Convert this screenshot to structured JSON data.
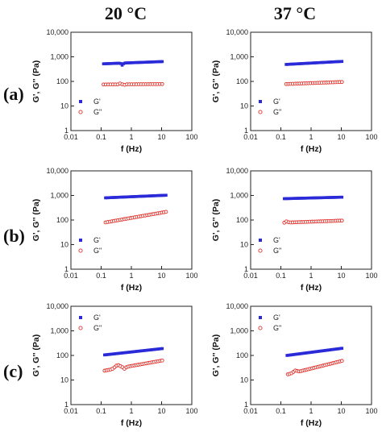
{
  "column_titles": [
    "20 °C",
    "37 °C"
  ],
  "row_labels": [
    "(a)",
    "(b)",
    "(c)"
  ],
  "colors": {
    "g_storage": "#2a2ad8",
    "g_loss": "#e0302a"
  },
  "chart_data": [
    {
      "panel": "a-20C",
      "type": "scatter",
      "xscale": "log",
      "yscale": "log",
      "xlabel": "f (Hz)",
      "ylabel": "G', G'' (Pa)",
      "xlim": [
        0.01,
        100
      ],
      "ylim": [
        1,
        10000
      ],
      "xticks": [
        "0.01",
        "0.1",
        "1",
        "10",
        "100"
      ],
      "yticks": [
        "1",
        "10",
        "100",
        "1,000",
        "10,000"
      ],
      "legend_position": "left",
      "series": [
        {
          "name": "G'",
          "marker": "filled-square",
          "fmin": 0.12,
          "fmax": 10.5,
          "npts": 42,
          "start": 520,
          "end": 640,
          "bumps": [
            [
              0.5,
              0.82,
              0.04
            ]
          ]
        },
        {
          "name": "G\"",
          "marker": "open-circle",
          "fmin": 0.12,
          "fmax": 10.5,
          "npts": 26,
          "start": 75,
          "end": 78,
          "bumps": [
            [
              0.45,
              1.12,
              0.05
            ],
            [
              0.55,
              0.9,
              0.04
            ]
          ]
        }
      ]
    },
    {
      "panel": "a-37C",
      "type": "scatter",
      "xscale": "log",
      "yscale": "log",
      "xlabel": "f (Hz)",
      "ylabel": "G', G'' (Pa)",
      "xlim": [
        0.01,
        100
      ],
      "ylim": [
        1,
        10000
      ],
      "xticks": [
        "0.01",
        "0.1",
        "1",
        "10",
        "100"
      ],
      "yticks": [
        "1",
        "10",
        "100",
        "1,000",
        "10,000"
      ],
      "legend_position": "left",
      "series": [
        {
          "name": "G'",
          "marker": "filled-square",
          "fmin": 0.15,
          "fmax": 10.5,
          "npts": 42,
          "start": 490,
          "end": 650,
          "bumps": []
        },
        {
          "name": "G\"",
          "marker": "open-circle",
          "fmin": 0.15,
          "fmax": 10.5,
          "npts": 26,
          "start": 78,
          "end": 95,
          "bumps": []
        }
      ]
    },
    {
      "panel": "b-20C",
      "type": "scatter",
      "xscale": "log",
      "yscale": "log",
      "xlabel": "f (Hz)",
      "ylabel": "G', G'' (Pa)",
      "xlim": [
        0.01,
        100
      ],
      "ylim": [
        1,
        10000
      ],
      "xticks": [
        "0.01",
        "0.1",
        "1",
        "10",
        "100"
      ],
      "yticks": [
        "1",
        "10",
        "100",
        "1,000",
        "10,000"
      ],
      "legend_position": "left",
      "series": [
        {
          "name": "G'",
          "marker": "filled-square",
          "fmin": 0.14,
          "fmax": 14,
          "npts": 46,
          "start": 800,
          "end": 1020,
          "bumps": []
        },
        {
          "name": "G\"",
          "marker": "open-circle",
          "fmin": 0.14,
          "fmax": 14,
          "npts": 30,
          "start": 80,
          "end": 215,
          "bumps": []
        }
      ]
    },
    {
      "panel": "b-37C",
      "type": "scatter",
      "xscale": "log",
      "yscale": "log",
      "xlabel": "f (Hz)",
      "ylabel": "G', G'' (Pa)",
      "xlim": [
        0.01,
        100
      ],
      "ylim": [
        1,
        10000
      ],
      "xticks": [
        "0.01",
        "0.1",
        "1",
        "10",
        "100"
      ],
      "yticks": [
        "1",
        "10",
        "100",
        "1,000",
        "10,000"
      ],
      "legend_position": "left",
      "series": [
        {
          "name": "G'",
          "marker": "filled-square",
          "fmin": 0.13,
          "fmax": 10.5,
          "npts": 42,
          "start": 740,
          "end": 850,
          "bumps": []
        },
        {
          "name": "G\"",
          "marker": "open-circle",
          "fmin": 0.13,
          "fmax": 10.5,
          "npts": 28,
          "start": 78,
          "end": 95,
          "bumps": [
            [
              0.16,
              1.15,
              0.04
            ]
          ]
        }
      ]
    },
    {
      "panel": "c-20C",
      "type": "scatter",
      "xscale": "log",
      "yscale": "log",
      "xlabel": "f (Hz)",
      "ylabel": "G', G'' (Pa)",
      "xlim": [
        0.01,
        100
      ],
      "ylim": [
        1,
        10000
      ],
      "xticks": [
        "0.01",
        "0.1",
        "1",
        "10",
        "100"
      ],
      "yticks": [
        "1",
        "10",
        "100",
        "1,000",
        "10,000"
      ],
      "legend_position": "top-left",
      "series": [
        {
          "name": "G'",
          "marker": "filled-square",
          "fmin": 0.13,
          "fmax": 10.5,
          "npts": 42,
          "start": 105,
          "end": 190,
          "bumps": []
        },
        {
          "name": "G\"",
          "marker": "open-circle",
          "fmin": 0.13,
          "fmax": 10.5,
          "npts": 30,
          "start": 24,
          "end": 62,
          "bumps": [
            [
              0.35,
              1.35,
              0.12
            ],
            [
              0.6,
              0.85,
              0.05
            ]
          ]
        }
      ]
    },
    {
      "panel": "c-37C",
      "type": "scatter",
      "xscale": "log",
      "yscale": "log",
      "xlabel": "f (Hz)",
      "ylabel": "G', G'' (Pa)",
      "xlim": [
        0.01,
        100
      ],
      "ylim": [
        1,
        10000
      ],
      "xticks": [
        "0.01",
        "0.1",
        "1",
        "10",
        "100"
      ],
      "yticks": [
        "1",
        "10",
        "100",
        "1,000",
        "10,000"
      ],
      "legend_position": "top-left",
      "series": [
        {
          "name": "G'",
          "marker": "filled-square",
          "fmin": 0.16,
          "fmax": 10.5,
          "npts": 42,
          "start": 100,
          "end": 195,
          "bumps": []
        },
        {
          "name": "G\"",
          "marker": "open-circle",
          "fmin": 0.17,
          "fmax": 10.5,
          "npts": 30,
          "start": 17,
          "end": 60,
          "bumps": [
            [
              0.3,
              1.2,
              0.08
            ]
          ]
        }
      ]
    }
  ]
}
